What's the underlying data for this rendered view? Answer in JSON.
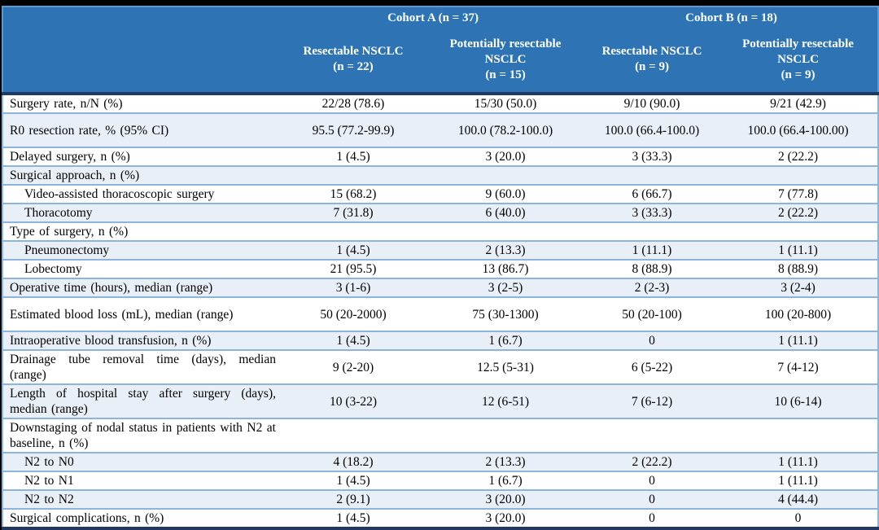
{
  "colors": {
    "header_bg": "#2E74B5",
    "header_border": "#5B9BD5",
    "navy_divider": "#1F3864",
    "row_border": "#8DB4DC",
    "shaded_row_bg": "#E9EFF7",
    "header_text": "#FFFFFF",
    "body_text": "#000000",
    "frame": "#000000"
  },
  "table": {
    "cohort_headers": [
      {
        "label": "Cohort A (n = 37)"
      },
      {
        "label": "Cohort B (n = 18)"
      }
    ],
    "column_headers": [
      {
        "name": "Resectable NSCLC",
        "n": "(n = 22)"
      },
      {
        "name": "Potentially resectable NSCLC",
        "n": "(n = 15)"
      },
      {
        "name": "Resectable NSCLC",
        "n": "(n = 9)"
      },
      {
        "name": "Potentially resectable NSCLC",
        "n": "(n = 9)"
      }
    ],
    "rows": [
      {
        "label": "Surgery rate, n/N (%)",
        "values": [
          "22/28 (78.6)",
          "15/30 (50.0)",
          "9/10 (90.0)",
          "9/21 (42.9)"
        ]
      },
      {
        "label": "R0 resection rate, % (95% CI)",
        "values": [
          "95.5 (77.2-99.9)",
          "100.0 (78.2-100.0)",
          "100.0 (66.4-100.0)",
          "100.0 (66.4-100.00)"
        ]
      },
      {
        "label": "Delayed surgery, n (%)",
        "values": [
          "1 (4.5)",
          "3 (20.0)",
          "3 (33.3)",
          "2 (22.2)"
        ]
      },
      {
        "label": "Surgical approach, n (%)",
        "values": [
          "",
          "",
          "",
          ""
        ]
      },
      {
        "label": "Video-assisted thoracoscopic surgery",
        "values": [
          "15 (68.2)",
          "9 (60.0)",
          "6 (66.7)",
          "7 (77.8)"
        ]
      },
      {
        "label": "Thoracotomy",
        "values": [
          "7 (31.8)",
          "6 (40.0)",
          "3 (33.3)",
          "2 (22.2)"
        ]
      },
      {
        "label": "Type of surgery, n (%)",
        "values": [
          "",
          "",
          "",
          ""
        ]
      },
      {
        "label": "Pneumonectomy",
        "values": [
          "1 (4.5)",
          "2 (13.3)",
          "1 (11.1)",
          "1 (11.1)"
        ]
      },
      {
        "label": "Lobectomy",
        "values": [
          "21 (95.5)",
          "13 (86.7)",
          "8 (88.9)",
          "8 (88.9)"
        ]
      },
      {
        "label": "Operative time (hours), median (range)",
        "values": [
          "3 (1-6)",
          "3 (2-5)",
          "2 (2-3)",
          "3 (2-4)"
        ]
      },
      {
        "label": "Estimated blood loss (mL), median (range)",
        "values": [
          "50 (20-2000)",
          "75 (30-1300)",
          "50 (20-100)",
          "100 (20-800)"
        ]
      },
      {
        "label": "Intraoperative blood transfusion, n (%)",
        "values": [
          "1 (4.5)",
          "1 (6.7)",
          "0",
          "1 (11.1)"
        ]
      },
      {
        "label": "Drainage tube removal time (days), median (range)",
        "values": [
          "9 (2-20)",
          "12.5 (5-31)",
          "6 (5-22)",
          "7 (4-12)"
        ]
      },
      {
        "label": "Length of hospital stay after surgery (days), median (range)",
        "values": [
          "10 (3-22)",
          "12 (6-51)",
          "7 (6-12)",
          "10 (6-14)"
        ]
      },
      {
        "label": "Downstaging of nodal status in patients with N2 at baseline, n (%)",
        "values": [
          "",
          "",
          "",
          ""
        ]
      },
      {
        "label": "N2 to N0",
        "values": [
          "4 (18.2)",
          "2 (13.3)",
          "2 (22.2)",
          "1 (11.1)"
        ]
      },
      {
        "label": "N2 to N1",
        "values": [
          "1 (4.5)",
          "1 (6.7)",
          "0",
          "1 (11.1)"
        ]
      },
      {
        "label": "N2 to N2",
        "values": [
          "2 (9.1)",
          "3 (20.0)",
          "0",
          "4 (44.4)"
        ]
      },
      {
        "label": "Surgical complications, n (%)",
        "values": [
          "1 (4.5)",
          "3 (20.0)",
          "0",
          "0"
        ]
      }
    ]
  }
}
